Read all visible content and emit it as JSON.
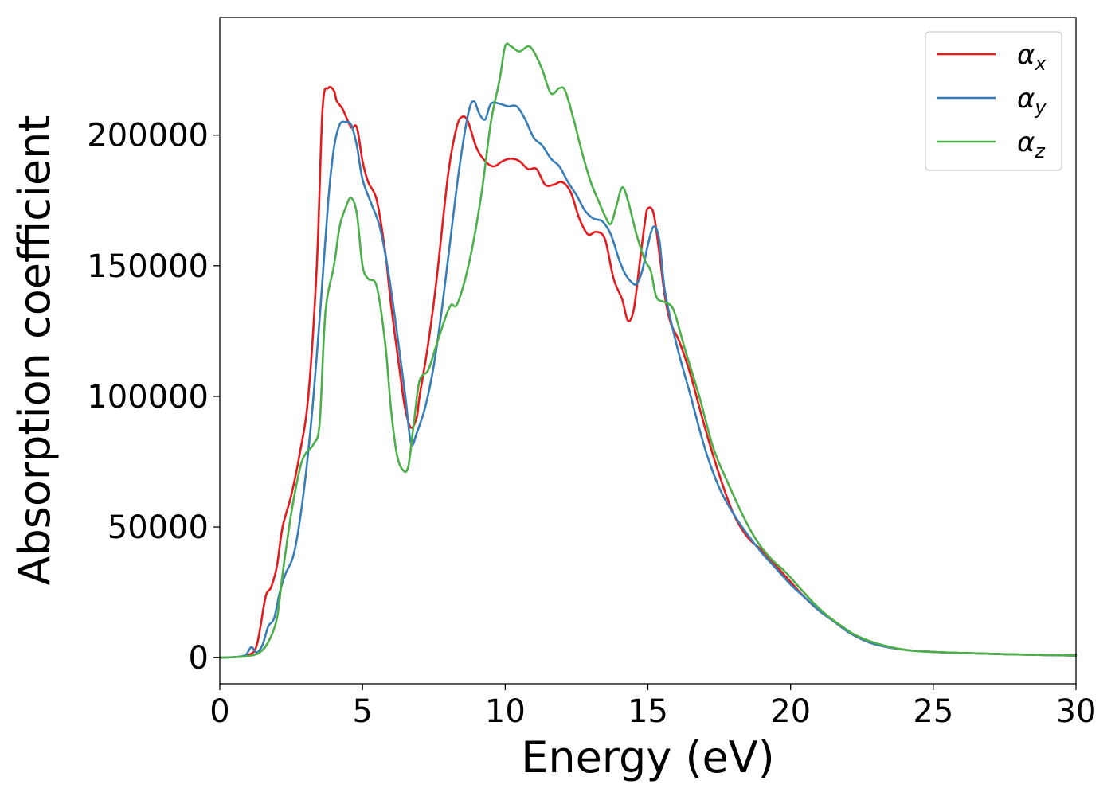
{
  "chart_data": {
    "type": "line",
    "xlabel": "Energy (eV)",
    "ylabel": "Absorption coefficient",
    "xlim": [
      0,
      30
    ],
    "ylim": [
      -10000,
      245000
    ],
    "xticks": [
      0,
      5,
      10,
      15,
      20,
      25,
      30
    ],
    "yticks": [
      0,
      50000,
      100000,
      150000,
      200000
    ],
    "grid": false,
    "legend_position": "top-right",
    "series": [
      {
        "name": "αx",
        "name_base": "α",
        "name_sub": "x",
        "color": "#e41a1c",
        "x": [
          0,
          0.5,
          1.0,
          1.3,
          1.6,
          1.8,
          2.0,
          2.2,
          2.5,
          2.8,
          3.1,
          3.4,
          3.6,
          3.8,
          4.0,
          4.1,
          4.3,
          4.6,
          4.8,
          5.0,
          5.2,
          5.5,
          5.8,
          6.0,
          6.3,
          6.5,
          6.7,
          6.9,
          7.0,
          7.3,
          7.6,
          8.0,
          8.3,
          8.5,
          8.7,
          9.0,
          9.3,
          9.6,
          9.9,
          10.2,
          10.5,
          10.8,
          11.1,
          11.4,
          11.7,
          12.0,
          12.3,
          12.6,
          12.9,
          13.2,
          13.5,
          13.8,
          14.1,
          14.3,
          14.5,
          14.7,
          14.9,
          15.0,
          15.2,
          15.4,
          15.6,
          15.8,
          16.1,
          16.5,
          17.0,
          17.5,
          18.0,
          18.5,
          19.0,
          19.5,
          20.0,
          20.5,
          21.0,
          21.5,
          22.0,
          22.5,
          23.0,
          24.0,
          25.0,
          26.0,
          27.0,
          28.0,
          29.0,
          30.0
        ],
        "y": [
          0,
          200,
          1000,
          5000,
          23000,
          27000,
          35000,
          50000,
          62000,
          78000,
          100000,
          150000,
          210000,
          218000,
          217000,
          213000,
          210000,
          203000,
          203000,
          190000,
          182000,
          175000,
          155000,
          135000,
          110000,
          95000,
          88000,
          92000,
          100000,
          120000,
          145000,
          185000,
          203000,
          207000,
          205000,
          195000,
          190000,
          188000,
          190000,
          191000,
          190000,
          187000,
          187000,
          181000,
          181000,
          182000,
          178000,
          168000,
          162000,
          163000,
          160000,
          145000,
          137000,
          129000,
          133000,
          150000,
          167000,
          172000,
          170000,
          155000,
          138000,
          128000,
          121000,
          108000,
          88000,
          70000,
          55000,
          46000,
          41000,
          35000,
          29000,
          23000,
          18000,
          14000,
          10000,
          7000,
          5000,
          3000,
          2200,
          1800,
          1500,
          1200,
          1000,
          800
        ]
      },
      {
        "name": "αy",
        "name_base": "α",
        "name_sub": "y",
        "color": "#377eb8",
        "x": [
          0,
          0.5,
          0.9,
          1.1,
          1.3,
          1.5,
          1.7,
          1.9,
          2.1,
          2.3,
          2.6,
          2.9,
          3.2,
          3.5,
          3.8,
          4.0,
          4.2,
          4.4,
          4.6,
          4.8,
          5.0,
          5.3,
          5.6,
          5.9,
          6.2,
          6.5,
          6.7,
          6.9,
          7.2,
          7.5,
          7.8,
          8.1,
          8.4,
          8.7,
          8.9,
          9.1,
          9.3,
          9.5,
          9.8,
          10.1,
          10.4,
          10.7,
          11.0,
          11.3,
          11.6,
          11.9,
          12.2,
          12.5,
          12.8,
          13.1,
          13.4,
          13.7,
          14.0,
          14.2,
          14.4,
          14.6,
          14.8,
          15.0,
          15.2,
          15.4,
          15.6,
          16.0,
          16.5,
          17.0,
          17.5,
          18.0,
          18.5,
          19.0,
          19.5,
          20.0,
          20.5,
          21.0,
          21.5,
          22.0,
          22.5,
          23.0,
          24.0,
          25.0,
          26.0,
          27.0,
          28.0,
          29.0,
          30.0
        ],
        "y": [
          0,
          200,
          1000,
          4000,
          2000,
          5000,
          12000,
          15000,
          25000,
          32000,
          40000,
          60000,
          90000,
          130000,
          175000,
          195000,
          204000,
          205000,
          204000,
          196000,
          183000,
          174000,
          165000,
          148000,
          125000,
          100000,
          82000,
          86000,
          96000,
          112000,
          135000,
          162000,
          188000,
          208000,
          213000,
          208000,
          206000,
          212000,
          212000,
          211000,
          211000,
          206000,
          199000,
          196000,
          191000,
          188000,
          182000,
          177000,
          171000,
          168000,
          167000,
          162000,
          152000,
          147000,
          144000,
          143000,
          148000,
          158000,
          165000,
          160000,
          140000,
          120000,
          100000,
          80000,
          65000,
          55000,
          47000,
          40000,
          34000,
          28000,
          23000,
          18000,
          14000,
          10000,
          7000,
          5000,
          3000,
          2200,
          1800,
          1500,
          1200,
          1000,
          800
        ]
      },
      {
        "name": "αz",
        "name_base": "α",
        "name_sub": "z",
        "color": "#4daf4a",
        "x": [
          0,
          0.5,
          1.0,
          1.4,
          1.7,
          2.0,
          2.2,
          2.5,
          2.8,
          3.0,
          3.3,
          3.5,
          3.7,
          4.0,
          4.2,
          4.4,
          4.6,
          4.8,
          5.0,
          5.2,
          5.5,
          5.8,
          6.0,
          6.2,
          6.4,
          6.6,
          6.8,
          7.0,
          7.3,
          7.6,
          7.9,
          8.1,
          8.3,
          8.6,
          8.9,
          9.2,
          9.5,
          9.8,
          10.0,
          10.2,
          10.5,
          10.8,
          11.0,
          11.3,
          11.6,
          11.9,
          12.1,
          12.4,
          12.7,
          13.0,
          13.3,
          13.5,
          13.7,
          13.9,
          14.1,
          14.3,
          14.6,
          14.9,
          15.1,
          15.3,
          15.6,
          15.9,
          16.3,
          16.8,
          17.3,
          17.8,
          18.3,
          18.8,
          19.3,
          19.8,
          20.3,
          20.8,
          21.3,
          21.8,
          22.3,
          23.0,
          24.0,
          25.0,
          26.0,
          27.0,
          28.0,
          29.0,
          30.0
        ],
        "y": [
          0,
          200,
          600,
          2000,
          6000,
          15000,
          32000,
          55000,
          72000,
          78000,
          82000,
          90000,
          132000,
          150000,
          165000,
          172000,
          176000,
          170000,
          150000,
          145000,
          142000,
          120000,
          95000,
          78000,
          72000,
          73000,
          90000,
          106000,
          110000,
          120000,
          130000,
          135000,
          135000,
          145000,
          160000,
          180000,
          205000,
          221000,
          234000,
          234000,
          232000,
          234000,
          232000,
          225000,
          216000,
          218000,
          217000,
          206000,
          193000,
          182000,
          174000,
          169000,
          166000,
          173000,
          180000,
          175000,
          162000,
          152000,
          148000,
          138000,
          136000,
          133000,
          118000,
          100000,
          80000,
          67000,
          55000,
          45000,
          38000,
          33000,
          27000,
          21000,
          16000,
          12000,
          8500,
          5500,
          3000,
          2200,
          1800,
          1500,
          1200,
          1000,
          800
        ]
      }
    ]
  }
}
